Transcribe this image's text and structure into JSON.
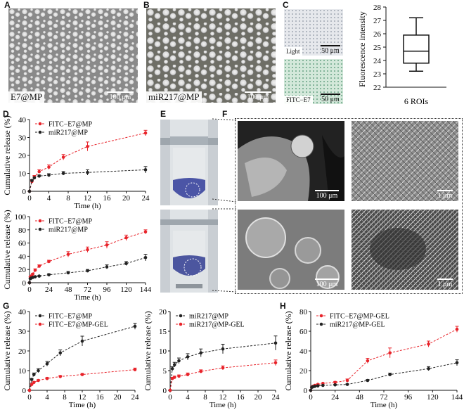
{
  "panels": {
    "A": {
      "letter": "A",
      "label": "E7@MP",
      "scale": "100 μm"
    },
    "B": {
      "letter": "B",
      "label": "miR217@MP",
      "scale": "100 μm"
    },
    "C": {
      "letter": "C",
      "light_label": "Light",
      "fitc_label": "FITC−E7",
      "scale": "50 μm",
      "ylabel": "Fluorescence intensity",
      "xlabel": "6 ROIs",
      "yticks": [
        "22",
        "23",
        "24",
        "25",
        "26",
        "27",
        "28"
      ]
    },
    "D": {
      "letter": "D"
    },
    "E": {
      "letter": "E"
    },
    "F": {
      "letter": "F",
      "scale_left": "100 μm",
      "scale_right": "1 μm"
    },
    "G": {
      "letter": "G"
    },
    "H": {
      "letter": "H"
    }
  },
  "chart_data": [
    {
      "id": "C-box",
      "type": "box",
      "ylabel": "Fluorescence intensity",
      "xlabel": "6 ROIs",
      "ylim": [
        22,
        28
      ],
      "min": 23.2,
      "q1": 23.8,
      "median": 24.7,
      "q3": 25.9,
      "max": 27.2
    },
    {
      "id": "D-top",
      "type": "line",
      "xlabel": "Time (h)",
      "ylabel": "Cumulative release (%)",
      "xlim": [
        0,
        24
      ],
      "ylim": [
        0,
        40
      ],
      "xticks": [
        "0",
        "4",
        "8",
        "12",
        "16",
        "20",
        "24"
      ],
      "yticks": [
        "0",
        "10",
        "20",
        "30",
        "40"
      ],
      "legend": "top-left",
      "series": [
        {
          "name": "FITC−E7@MP",
          "color": "#e8232a",
          "x": [
            0,
            0.5,
            1,
            2,
            4,
            7,
            12,
            24
          ],
          "y": [
            0,
            5.5,
            8,
            11,
            13.5,
            19,
            25,
            32.5
          ],
          "err": [
            0,
            0.5,
            0.8,
            1,
            1.2,
            1.5,
            2.5,
            1.5
          ]
        },
        {
          "name": "miR217@MP",
          "color": "#222222",
          "x": [
            0,
            0.5,
            1,
            2,
            4,
            7,
            12,
            24
          ],
          "y": [
            0,
            6,
            7.5,
            8.5,
            9,
            10,
            10.5,
            12
          ],
          "err": [
            0,
            0.5,
            0.5,
            0.6,
            0.8,
            1,
            1.5,
            1.8
          ]
        }
      ]
    },
    {
      "id": "D-bottom",
      "type": "line",
      "xlabel": "Time (h)",
      "ylabel": "Cumulative release (%)",
      "xlim": [
        0,
        144
      ],
      "ylim": [
        0,
        100
      ],
      "xticks": [
        "0",
        "24",
        "48",
        "72",
        "96",
        "120",
        "144"
      ],
      "yticks": [
        "0",
        "20",
        "40",
        "60",
        "80",
        "100"
      ],
      "legend": "top-left",
      "series": [
        {
          "name": "FITC−E7@MP",
          "color": "#e8232a",
          "x": [
            0,
            1,
            2,
            4,
            7,
            12,
            24,
            48,
            72,
            96,
            120,
            144
          ],
          "y": [
            0,
            8,
            10,
            13,
            19,
            25,
            32,
            43,
            50,
            57,
            68,
            77
          ],
          "err": [
            0,
            1,
            1,
            1,
            2,
            2,
            2,
            4,
            4,
            5,
            4,
            3
          ]
        },
        {
          "name": "miR217@MP",
          "color": "#222222",
          "x": [
            0,
            1,
            2,
            4,
            7,
            12,
            24,
            48,
            72,
            96,
            120,
            144
          ],
          "y": [
            0,
            6,
            7,
            8,
            9,
            10,
            12,
            15,
            18,
            24,
            29,
            38
          ],
          "err": [
            0,
            0.5,
            0.5,
            0.5,
            1,
            1,
            1.5,
            2,
            2,
            3,
            3,
            5
          ]
        }
      ]
    },
    {
      "id": "G-left",
      "type": "line",
      "xlabel": "Time (h)",
      "ylabel": "Cumulative release (%)",
      "xlim": [
        0,
        24
      ],
      "ylim": [
        0,
        40
      ],
      "xticks": [
        "0",
        "4",
        "8",
        "12",
        "16",
        "20",
        "24"
      ],
      "yticks": [
        "0",
        "10",
        "20",
        "30",
        "40"
      ],
      "legend": "top-left",
      "series": [
        {
          "name": "FITC−E7@MP",
          "color": "#222222",
          "x": [
            0,
            0.5,
            1,
            2,
            4,
            7,
            12,
            24
          ],
          "y": [
            0,
            5.5,
            8,
            10,
            13.5,
            19,
            25,
            32.5
          ],
          "err": [
            0,
            0.5,
            0.8,
            1,
            1.2,
            1.5,
            2.5,
            1.5
          ]
        },
        {
          "name": "FITC−E7@MP-GEL",
          "color": "#e8232a",
          "x": [
            0,
            0.5,
            1,
            2,
            4,
            7,
            12,
            24
          ],
          "y": [
            0,
            3,
            4,
            5,
            6,
            7,
            8,
            10.5
          ],
          "err": [
            0,
            0.3,
            0.4,
            0.4,
            0.5,
            0.5,
            0.6,
            0.8
          ]
        }
      ]
    },
    {
      "id": "G-right",
      "type": "line",
      "xlabel": "Time (h)",
      "ylabel": "Cumulative release (%)",
      "xlim": [
        0,
        24
      ],
      "ylim": [
        0,
        20
      ],
      "xticks": [
        "0",
        "4",
        "8",
        "12",
        "16",
        "20",
        "24"
      ],
      "yticks": [
        "0",
        "5",
        "10",
        "15",
        "20"
      ],
      "legend": "top-left",
      "series": [
        {
          "name": "miR217@MP",
          "color": "#222222",
          "x": [
            0,
            0.5,
            1,
            2,
            4,
            7,
            12,
            24
          ],
          "y": [
            0,
            5.5,
            6.5,
            7.5,
            8.5,
            9.5,
            10.5,
            12
          ],
          "err": [
            0,
            0.5,
            0.6,
            0.7,
            0.8,
            1,
            1.2,
            1.8
          ]
        },
        {
          "name": "miR217@MP-GEL",
          "color": "#e8232a",
          "x": [
            0,
            0.5,
            1,
            2,
            4,
            7,
            12,
            24
          ],
          "y": [
            0,
            3,
            3.3,
            3.6,
            4,
            4.8,
            5.7,
            7
          ],
          "err": [
            0,
            0.3,
            0.3,
            0.3,
            0.4,
            0.4,
            0.5,
            0.7
          ]
        }
      ]
    },
    {
      "id": "H",
      "type": "line",
      "xlabel": "Time (h)",
      "ylabel": "Cumulative release (%)",
      "xlim": [
        0,
        144
      ],
      "ylim": [
        0,
        80
      ],
      "xticks": [
        "0",
        "24",
        "48",
        "72",
        "96",
        "120",
        "144"
      ],
      "yticks": [
        "0",
        "20",
        "40",
        "60",
        "80"
      ],
      "legend": "top-left",
      "series": [
        {
          "name": "FITC−E7@MP-GEL",
          "color": "#e8232a",
          "x": [
            0,
            1,
            2,
            4,
            7,
            12,
            24,
            36,
            56,
            78,
            116,
            144
          ],
          "y": [
            0,
            3,
            4,
            5,
            6,
            7,
            8,
            10,
            30,
            38,
            47,
            62
          ],
          "err": [
            0,
            0.5,
            0.5,
            0.5,
            0.5,
            0.5,
            1,
            1.5,
            2.5,
            5,
            3,
            3
          ]
        },
        {
          "name": "miR217@MP-GEL",
          "color": "#222222",
          "x": [
            0,
            1,
            2,
            4,
            7,
            12,
            24,
            36,
            56,
            78,
            116,
            144
          ],
          "y": [
            0,
            3,
            3.5,
            4,
            4.5,
            5,
            5.5,
            6,
            10,
            16,
            22,
            28
          ],
          "err": [
            0,
            0.3,
            0.3,
            0.3,
            0.4,
            0.4,
            0.5,
            0.6,
            1,
            1.5,
            2,
            3
          ]
        }
      ]
    }
  ]
}
